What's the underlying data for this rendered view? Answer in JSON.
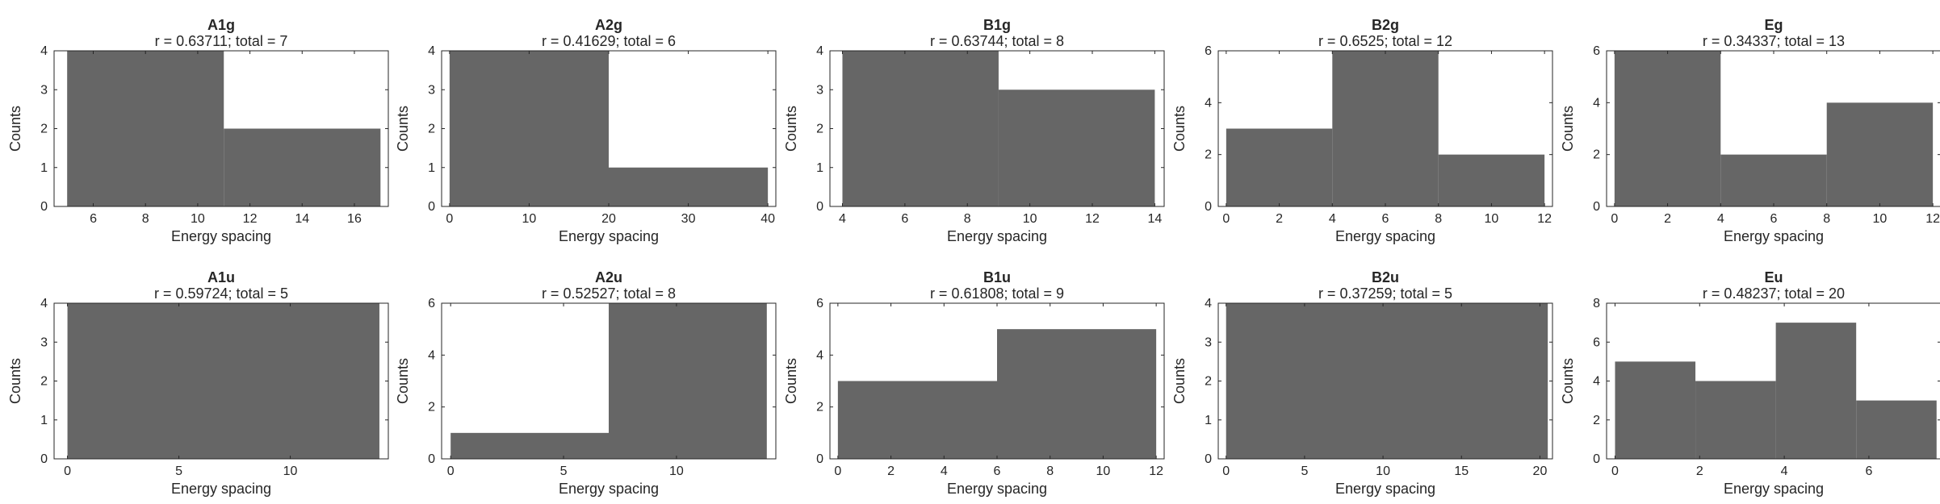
{
  "chart_data": [
    {
      "type": "bar",
      "title": "A1g",
      "subtitle": "r = 0.63711; total = 7",
      "xlabel": "Energy spacing",
      "ylabel": "Counts",
      "xlim": [
        4.5,
        17.3
      ],
      "ylim": [
        0,
        4
      ],
      "xticks": [
        "6",
        "8",
        "10",
        "12",
        "14",
        "16"
      ],
      "xtick_values": [
        6,
        8,
        10,
        12,
        14,
        16
      ],
      "yticks": [
        "0",
        "1",
        "2",
        "3",
        "4"
      ],
      "bins": [
        {
          "x0": 5,
          "x1": 11,
          "count": 4
        },
        {
          "x0": 11,
          "x1": 17,
          "count": 2
        }
      ]
    },
    {
      "type": "bar",
      "title": "A2g",
      "subtitle": "r = 0.41629; total = 6",
      "xlabel": "Energy spacing",
      "ylabel": "Counts",
      "xlim": [
        -1,
        41
      ],
      "ylim": [
        0,
        4
      ],
      "xticks": [
        "0",
        "10",
        "20",
        "30",
        "40"
      ],
      "xtick_values": [
        0,
        10,
        20,
        30,
        40
      ],
      "yticks": [
        "0",
        "1",
        "2",
        "3",
        "4"
      ],
      "bins": [
        {
          "x0": 0,
          "x1": 20,
          "count": 4
        },
        {
          "x0": 20,
          "x1": 40,
          "count": 1
        }
      ]
    },
    {
      "type": "bar",
      "title": "B1g",
      "subtitle": "r = 0.63744; total = 8",
      "xlabel": "Energy spacing",
      "ylabel": "Counts",
      "xlim": [
        3.6,
        14.3
      ],
      "ylim": [
        0,
        4
      ],
      "xticks": [
        "4",
        "6",
        "8",
        "10",
        "12",
        "14"
      ],
      "xtick_values": [
        4,
        6,
        8,
        10,
        12,
        14
      ],
      "yticks": [
        "0",
        "1",
        "2",
        "3",
        "4"
      ],
      "bins": [
        {
          "x0": 4,
          "x1": 9,
          "count": 4
        },
        {
          "x0": 9,
          "x1": 14,
          "count": 3
        }
      ]
    },
    {
      "type": "bar",
      "title": "B2g",
      "subtitle": "r = 0.6525; total = 12",
      "xlabel": "Energy spacing",
      "ylabel": "Counts",
      "xlim": [
        -0.3,
        12.3
      ],
      "ylim": [
        0,
        6
      ],
      "xticks": [
        "0",
        "2",
        "4",
        "6",
        "8",
        "10",
        "12"
      ],
      "xtick_values": [
        0,
        2,
        4,
        6,
        8,
        10,
        12
      ],
      "yticks": [
        "0",
        "2",
        "4",
        "6"
      ],
      "bins": [
        {
          "x0": 0,
          "x1": 4,
          "count": 3
        },
        {
          "x0": 4,
          "x1": 8,
          "count": 6
        },
        {
          "x0": 8,
          "x1": 12,
          "count": 2
        }
      ]
    },
    {
      "type": "bar",
      "title": "Eg",
      "subtitle": "r = 0.34337; total = 13",
      "xlabel": "Energy spacing",
      "ylabel": "Counts",
      "xlim": [
        -0.3,
        12.3
      ],
      "ylim": [
        0,
        6
      ],
      "xticks": [
        "0",
        "2",
        "4",
        "6",
        "8",
        "10",
        "12"
      ],
      "xtick_values": [
        0,
        2,
        4,
        6,
        8,
        10,
        12
      ],
      "yticks": [
        "0",
        "2",
        "4",
        "6"
      ],
      "bins": [
        {
          "x0": 0,
          "x1": 4,
          "count": 6
        },
        {
          "x0": 4,
          "x1": 8,
          "count": 2
        },
        {
          "x0": 8,
          "x1": 12,
          "count": 4
        }
      ]
    },
    {
      "type": "bar",
      "title": "A1u",
      "subtitle": "r = 0.59724; total = 5",
      "xlabel": "Energy spacing",
      "ylabel": "Counts",
      "xlim": [
        -0.6,
        14.4
      ],
      "ylim": [
        0,
        4
      ],
      "xticks": [
        "0",
        "5",
        "10"
      ],
      "xtick_values": [
        0,
        5,
        10
      ],
      "yticks": [
        "0",
        "1",
        "2",
        "3",
        "4"
      ],
      "bins": [
        {
          "x0": 0,
          "x1": 14,
          "count": 4
        }
      ]
    },
    {
      "type": "bar",
      "title": "A2u",
      "subtitle": "r = 0.52527; total = 8",
      "xlabel": "Energy spacing",
      "ylabel": "Counts",
      "xlim": [
        -0.4,
        14.4
      ],
      "ylim": [
        0,
        6
      ],
      "xticks": [
        "0",
        "5",
        "10"
      ],
      "xtick_values": [
        0,
        5,
        10
      ],
      "yticks": [
        "0",
        "2",
        "4",
        "6"
      ],
      "bins": [
        {
          "x0": 0,
          "x1": 7,
          "count": 1
        },
        {
          "x0": 7,
          "x1": 14,
          "count": 6
        }
      ]
    },
    {
      "type": "bar",
      "title": "B1u",
      "subtitle": "r = 0.61808; total = 9",
      "xlabel": "Energy spacing",
      "ylabel": "Counts",
      "xlim": [
        -0.3,
        12.3
      ],
      "ylim": [
        0,
        6
      ],
      "xticks": [
        "0",
        "2",
        "4",
        "6",
        "8",
        "10",
        "12"
      ],
      "xtick_values": [
        0,
        2,
        4,
        6,
        8,
        10,
        12
      ],
      "yticks": [
        "0",
        "2",
        "4",
        "6"
      ],
      "bins": [
        {
          "x0": 0,
          "x1": 6,
          "count": 3
        },
        {
          "x0": 6,
          "x1": 12,
          "count": 5
        }
      ]
    },
    {
      "type": "bar",
      "title": "B2u",
      "subtitle": "r = 0.37259; total = 5",
      "xlabel": "Energy spacing",
      "ylabel": "Counts",
      "xlim": [
        -0.5,
        20.8
      ],
      "ylim": [
        0,
        4
      ],
      "xticks": [
        "0",
        "5",
        "10",
        "15",
        "20"
      ],
      "xtick_values": [
        0,
        5,
        10,
        15,
        20
      ],
      "yticks": [
        "0",
        "1",
        "2",
        "3",
        "4"
      ],
      "bins": [
        {
          "x0": 0,
          "x1": 20.5,
          "count": 4
        }
      ]
    },
    {
      "type": "bar",
      "title": "Eu",
      "subtitle": "r = 0.48237; total = 20",
      "xlabel": "Energy spacing",
      "ylabel": "Counts",
      "xlim": [
        -0.2,
        7.7
      ],
      "ylim": [
        0,
        8
      ],
      "xticks": [
        "0",
        "2",
        "4",
        "6"
      ],
      "xtick_values": [
        0,
        2,
        4,
        6
      ],
      "yticks": [
        "0",
        "2",
        "4",
        "6",
        "8"
      ],
      "bins": [
        {
          "x0": 0,
          "x1": 1.9,
          "count": 5
        },
        {
          "x0": 1.9,
          "x1": 3.8,
          "count": 4
        },
        {
          "x0": 3.8,
          "x1": 5.7,
          "count": 7
        },
        {
          "x0": 5.7,
          "x1": 7.6,
          "count": 3
        }
      ]
    }
  ],
  "colors": {
    "bar": "#666666",
    "axis": "#262626",
    "background": "#ffffff"
  }
}
